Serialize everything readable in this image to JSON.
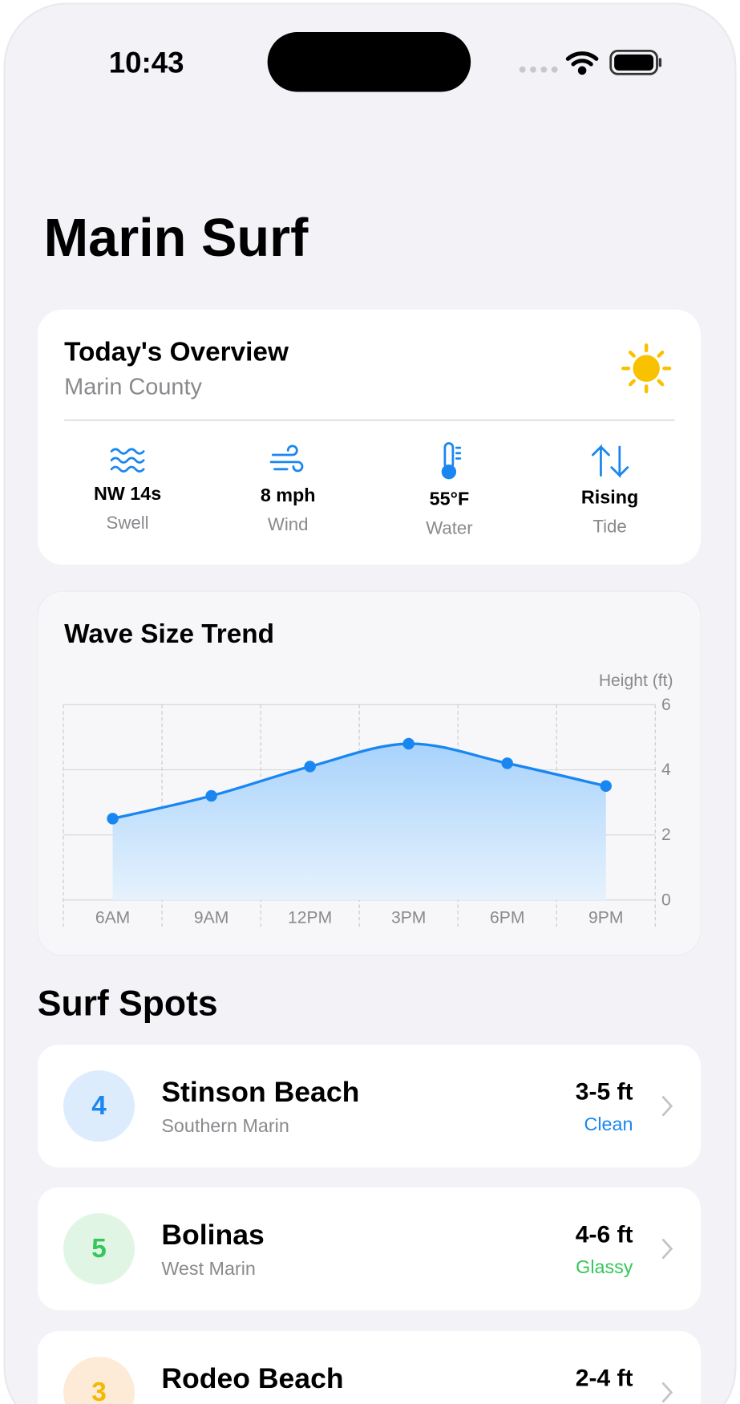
{
  "status": {
    "time": "10:43"
  },
  "header": {
    "title": "Marin Surf"
  },
  "overview": {
    "title": "Today's Overview",
    "subtitle": "Marin County",
    "stats": [
      {
        "value": "NW 14s",
        "label": "Swell"
      },
      {
        "value": "8 mph",
        "label": "Wind"
      },
      {
        "value": "55°F",
        "label": "Water"
      },
      {
        "value": "Rising",
        "label": "Tide"
      }
    ]
  },
  "chart_data": {
    "type": "area",
    "title": "Wave Size Trend",
    "y_label": "Height (ft)",
    "categories": [
      "6AM",
      "9AM",
      "12PM",
      "3PM",
      "6PM",
      "9PM"
    ],
    "values": [
      2.5,
      3.2,
      4.1,
      4.8,
      4.2,
      3.5
    ],
    "color": "#1a87f0",
    "ylim": [
      0,
      6
    ],
    "yticks": [
      0,
      2,
      4,
      6
    ],
    "grid": true
  },
  "spots_title": "Surf Spots",
  "spots": [
    {
      "rating": "4",
      "name": "Stinson Beach",
      "region": "Southern Marin",
      "size": "3-5 ft",
      "condition": "Clean",
      "color": "#1a87f0",
      "badge": "#dcecfc"
    },
    {
      "rating": "5",
      "name": "Bolinas",
      "region": "West Marin",
      "size": "4-6 ft",
      "condition": "Glassy",
      "color": "#34c759",
      "badge": "#e1f5e5"
    },
    {
      "rating": "3",
      "name": "Rodeo Beach",
      "size": "2-4 ft",
      "color": "#f5b800",
      "badge": "#fdebd8"
    }
  ]
}
